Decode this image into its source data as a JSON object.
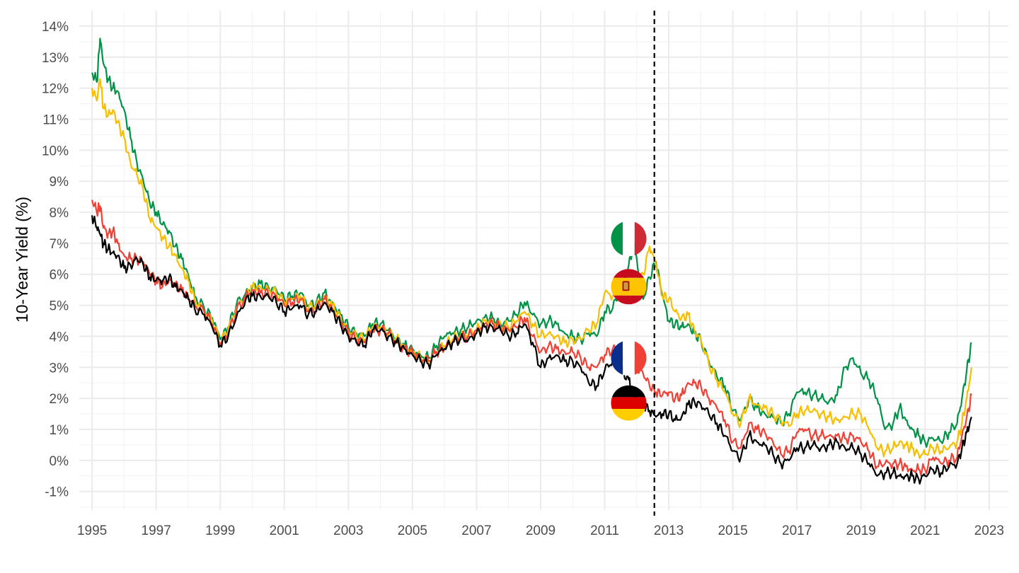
{
  "chart_data": {
    "type": "line",
    "title": "",
    "xlabel": "",
    "ylabel": "10-Year Yield (%)",
    "xlim": [
      1994.6,
      2023.6
    ],
    "ylim": [
      -1.6,
      14.5
    ],
    "x_ticks": [
      1995,
      1997,
      1999,
      2001,
      2003,
      2005,
      2007,
      2009,
      2011,
      2013,
      2015,
      2017,
      2019,
      2021,
      2023
    ],
    "x_tick_labels": [
      "1995",
      "1997",
      "1999",
      "2001",
      "2003",
      "2005",
      "2007",
      "2009",
      "2011",
      "2013",
      "2015",
      "2017",
      "2019",
      "2021",
      "2023"
    ],
    "y_ticks": [
      -1,
      0,
      1,
      2,
      3,
      4,
      5,
      6,
      7,
      8,
      9,
      10,
      11,
      12,
      13,
      14
    ],
    "y_tick_labels": [
      "-1%",
      "0%",
      "1%",
      "2%",
      "3%",
      "4%",
      "5%",
      "6%",
      "7%",
      "8%",
      "9%",
      "10%",
      "11%",
      "12%",
      "13%",
      "14%"
    ],
    "grid": true,
    "legend": "none",
    "vline": {
      "x": 2012.55,
      "style": "dashed",
      "color": "#000000"
    },
    "series": [
      {
        "color": "#009246",
        "flag": "italy-flag-icon",
        "flag_value": 7.15,
        "x": [
          1995.0,
          1995.15,
          1995.25,
          1995.35,
          1995.5,
          1995.65,
          1995.8,
          1996.0,
          1996.2,
          1996.4,
          1996.6,
          1996.8,
          1997.0,
          1997.2,
          1997.4,
          1997.6,
          1997.8,
          1998.0,
          1998.2,
          1998.5,
          1998.75,
          1999.0,
          1999.25,
          1999.5,
          1999.8,
          2000.0,
          2000.25,
          2000.5,
          2000.75,
          2001.0,
          2001.25,
          2001.5,
          2001.75,
          2002.0,
          2002.25,
          2002.5,
          2002.75,
          2003.0,
          2003.25,
          2003.5,
          2003.75,
          2004.0,
          2004.25,
          2004.5,
          2004.75,
          2005.0,
          2005.25,
          2005.5,
          2005.75,
          2006.0,
          2006.25,
          2006.5,
          2006.75,
          2007.0,
          2007.25,
          2007.5,
          2007.75,
          2008.0,
          2008.25,
          2008.5,
          2008.75,
          2009.0,
          2009.25,
          2009.5,
          2009.75,
          2010.0,
          2010.25,
          2010.5,
          2010.75,
          2011.0,
          2011.25,
          2011.5,
          2011.75,
          2011.9,
          2012.0,
          2012.2,
          2012.4,
          2012.6,
          2012.8,
          2013.0,
          2013.2,
          2013.4,
          2013.6,
          2013.8,
          2014.0,
          2014.25,
          2014.5,
          2014.75,
          2015.0,
          2015.25,
          2015.5,
          2015.75,
          2016.0,
          2016.25,
          2016.5,
          2016.75,
          2017.0,
          2017.25,
          2017.5,
          2017.75,
          2018.0,
          2018.25,
          2018.5,
          2018.75,
          2019.0,
          2019.25,
          2019.5,
          2019.75,
          2020.0,
          2020.2,
          2020.4,
          2020.6,
          2020.8,
          2021.0,
          2021.25,
          2021.5,
          2021.75,
          2022.0,
          2022.15,
          2022.3,
          2022.45
        ],
        "values": [
          12.5,
          12.2,
          13.6,
          12.8,
          12.3,
          12.0,
          11.9,
          11.3,
          10.4,
          9.6,
          9.0,
          8.3,
          8.0,
          7.6,
          7.4,
          6.9,
          6.5,
          6.0,
          5.3,
          4.9,
          4.6,
          3.9,
          4.3,
          5.0,
          5.4,
          5.6,
          5.7,
          5.6,
          5.5,
          5.2,
          5.3,
          5.4,
          5.0,
          5.1,
          5.4,
          5.1,
          4.7,
          4.3,
          4.1,
          4.0,
          4.4,
          4.4,
          4.2,
          3.9,
          3.7,
          3.6,
          3.4,
          3.3,
          3.7,
          4.0,
          4.1,
          4.2,
          4.3,
          4.5,
          4.6,
          4.6,
          4.4,
          4.5,
          4.7,
          5.1,
          4.7,
          4.4,
          4.5,
          4.4,
          4.1,
          4.0,
          3.9,
          4.1,
          4.0,
          4.8,
          4.9,
          5.5,
          6.3,
          7.0,
          6.5,
          5.2,
          5.9,
          6.4,
          5.3,
          4.5,
          4.4,
          4.3,
          4.4,
          4.1,
          3.9,
          3.2,
          2.7,
          2.4,
          1.6,
          1.3,
          2.0,
          1.7,
          1.5,
          1.4,
          1.2,
          1.5,
          2.2,
          2.2,
          2.1,
          2.0,
          1.9,
          2.1,
          3.0,
          3.3,
          2.8,
          2.6,
          2.0,
          1.0,
          1.2,
          1.7,
          1.3,
          1.0,
          0.8,
          0.6,
          0.7,
          0.6,
          0.9,
          1.2,
          2.0,
          2.9,
          3.8
        ]
      },
      {
        "color": "#f6bf00",
        "flag": "spain-flag-icon",
        "flag_value": 5.6,
        "x": [
          1995.0,
          1995.15,
          1995.25,
          1995.35,
          1995.5,
          1995.65,
          1995.8,
          1996.0,
          1996.2,
          1996.4,
          1996.6,
          1996.8,
          1997.0,
          1997.2,
          1997.4,
          1997.6,
          1997.8,
          1998.0,
          1998.2,
          1998.5,
          1998.75,
          1999.0,
          1999.25,
          1999.5,
          1999.8,
          2000.0,
          2000.25,
          2000.5,
          2000.75,
          2001.0,
          2001.25,
          2001.5,
          2001.75,
          2002.0,
          2002.25,
          2002.5,
          2002.75,
          2003.0,
          2003.25,
          2003.5,
          2003.75,
          2004.0,
          2004.25,
          2004.5,
          2004.75,
          2005.0,
          2005.25,
          2005.5,
          2005.75,
          2006.0,
          2006.25,
          2006.5,
          2006.75,
          2007.0,
          2007.25,
          2007.5,
          2007.75,
          2008.0,
          2008.25,
          2008.5,
          2008.75,
          2009.0,
          2009.25,
          2009.5,
          2009.75,
          2010.0,
          2010.25,
          2010.5,
          2010.75,
          2011.0,
          2011.25,
          2011.5,
          2011.75,
          2011.9,
          2012.0,
          2012.2,
          2012.4,
          2012.6,
          2012.8,
          2013.0,
          2013.2,
          2013.4,
          2013.6,
          2013.8,
          2014.0,
          2014.25,
          2014.5,
          2014.75,
          2015.0,
          2015.25,
          2015.5,
          2015.75,
          2016.0,
          2016.25,
          2016.5,
          2016.75,
          2017.0,
          2017.25,
          2017.5,
          2017.75,
          2018.0,
          2018.25,
          2018.5,
          2018.75,
          2019.0,
          2019.25,
          2019.5,
          2019.75,
          2020.0,
          2020.2,
          2020.4,
          2020.6,
          2020.8,
          2021.0,
          2021.25,
          2021.5,
          2021.75,
          2022.0,
          2022.15,
          2022.3,
          2022.45
        ],
        "values": [
          12.0,
          11.6,
          12.3,
          11.4,
          11.1,
          11.3,
          10.9,
          10.4,
          9.6,
          9.2,
          8.7,
          7.8,
          7.5,
          7.2,
          6.9,
          6.6,
          6.2,
          5.8,
          5.2,
          4.8,
          4.5,
          3.8,
          4.2,
          4.9,
          5.3,
          5.6,
          5.6,
          5.5,
          5.4,
          5.1,
          5.2,
          5.3,
          4.9,
          5.0,
          5.3,
          5.0,
          4.6,
          4.2,
          4.0,
          3.9,
          4.3,
          4.3,
          4.1,
          3.9,
          3.7,
          3.5,
          3.3,
          3.2,
          3.5,
          3.7,
          3.9,
          4.0,
          4.1,
          4.2,
          4.5,
          4.5,
          4.3,
          4.3,
          4.5,
          4.8,
          4.4,
          4.0,
          4.1,
          4.0,
          3.8,
          3.9,
          3.9,
          4.2,
          4.4,
          5.4,
          5.3,
          5.5,
          5.6,
          5.3,
          5.6,
          6.0,
          6.9,
          6.3,
          5.3,
          5.2,
          4.8,
          4.6,
          4.7,
          4.2,
          3.9,
          3.1,
          2.6,
          2.2,
          1.5,
          1.2,
          2.0,
          1.8,
          1.7,
          1.5,
          1.3,
          1.1,
          1.5,
          1.6,
          1.6,
          1.5,
          1.4,
          1.3,
          1.4,
          1.5,
          1.5,
          1.0,
          0.4,
          0.3,
          0.4,
          0.6,
          0.5,
          0.4,
          0.2,
          0.2,
          0.4,
          0.3,
          0.4,
          0.6,
          1.2,
          2.0,
          3.0
        ]
      },
      {
        "color": "#ef4135",
        "flag": "france-flag-icon",
        "flag_value": 3.3,
        "x": [
          1995.0,
          1995.15,
          1995.25,
          1995.35,
          1995.5,
          1995.65,
          1995.8,
          1996.0,
          1996.2,
          1996.4,
          1996.6,
          1996.8,
          1997.0,
          1997.2,
          1997.4,
          1997.6,
          1997.8,
          1998.0,
          1998.2,
          1998.5,
          1998.75,
          1999.0,
          1999.25,
          1999.5,
          1999.8,
          2000.0,
          2000.25,
          2000.5,
          2000.75,
          2001.0,
          2001.25,
          2001.5,
          2001.75,
          2002.0,
          2002.25,
          2002.5,
          2002.75,
          2003.0,
          2003.25,
          2003.5,
          2003.75,
          2004.0,
          2004.25,
          2004.5,
          2004.75,
          2005.0,
          2005.25,
          2005.5,
          2005.75,
          2006.0,
          2006.25,
          2006.5,
          2006.75,
          2007.0,
          2007.25,
          2007.5,
          2007.75,
          2008.0,
          2008.25,
          2008.5,
          2008.75,
          2009.0,
          2009.25,
          2009.5,
          2009.75,
          2010.0,
          2010.25,
          2010.5,
          2010.75,
          2011.0,
          2011.25,
          2011.5,
          2011.75,
          2011.9,
          2012.0,
          2012.2,
          2012.4,
          2012.6,
          2012.8,
          2013.0,
          2013.2,
          2013.4,
          2013.6,
          2013.8,
          2014.0,
          2014.25,
          2014.5,
          2014.75,
          2015.0,
          2015.25,
          2015.5,
          2015.75,
          2016.0,
          2016.25,
          2016.5,
          2016.75,
          2017.0,
          2017.25,
          2017.5,
          2017.75,
          2018.0,
          2018.25,
          2018.5,
          2018.75,
          2019.0,
          2019.25,
          2019.5,
          2019.75,
          2020.0,
          2020.2,
          2020.4,
          2020.6,
          2020.8,
          2021.0,
          2021.25,
          2021.5,
          2021.75,
          2022.0,
          2022.15,
          2022.3,
          2022.45
        ],
        "values": [
          8.4,
          8.0,
          8.2,
          7.5,
          7.3,
          7.4,
          7.0,
          6.6,
          6.5,
          6.5,
          6.4,
          6.0,
          5.8,
          5.6,
          5.8,
          5.7,
          5.5,
          5.3,
          5.0,
          4.8,
          4.4,
          3.7,
          4.1,
          4.8,
          5.3,
          5.5,
          5.4,
          5.4,
          5.3,
          5.0,
          5.1,
          5.2,
          4.8,
          4.9,
          5.2,
          4.9,
          4.5,
          4.1,
          3.9,
          3.8,
          4.2,
          4.2,
          4.1,
          3.8,
          3.6,
          3.5,
          3.3,
          3.2,
          3.5,
          3.6,
          3.8,
          4.0,
          4.0,
          4.2,
          4.4,
          4.4,
          4.3,
          4.2,
          4.3,
          4.6,
          4.0,
          3.5,
          3.7,
          3.6,
          3.5,
          3.5,
          3.3,
          3.0,
          3.0,
          3.4,
          3.6,
          3.3,
          3.2,
          3.1,
          3.0,
          2.8,
          2.4,
          2.2,
          2.1,
          2.2,
          2.0,
          2.1,
          2.5,
          2.5,
          2.4,
          2.0,
          1.7,
          1.3,
          0.6,
          0.4,
          1.2,
          1.0,
          0.9,
          0.6,
          0.2,
          0.3,
          0.9,
          1.0,
          0.8,
          0.8,
          0.8,
          0.8,
          0.7,
          0.8,
          0.6,
          0.3,
          -0.2,
          -0.1,
          -0.1,
          -0.1,
          -0.2,
          -0.3,
          -0.3,
          -0.3,
          0.1,
          -0.1,
          0.0,
          0.1,
          0.8,
          1.4,
          2.1
        ]
      },
      {
        "color": "#000000",
        "flag": "germany-flag-icon",
        "flag_value": 1.85,
        "x": [
          1995.0,
          1995.15,
          1995.25,
          1995.35,
          1995.5,
          1995.65,
          1995.8,
          1996.0,
          1996.2,
          1996.4,
          1996.6,
          1996.8,
          1997.0,
          1997.2,
          1997.4,
          1997.6,
          1997.8,
          1998.0,
          1998.2,
          1998.5,
          1998.75,
          1999.0,
          1999.25,
          1999.5,
          1999.8,
          2000.0,
          2000.25,
          2000.5,
          2000.75,
          2001.0,
          2001.25,
          2001.5,
          2001.75,
          2002.0,
          2002.25,
          2002.5,
          2002.75,
          2003.0,
          2003.25,
          2003.5,
          2003.75,
          2004.0,
          2004.25,
          2004.5,
          2004.75,
          2005.0,
          2005.25,
          2005.5,
          2005.75,
          2006.0,
          2006.25,
          2006.5,
          2006.75,
          2007.0,
          2007.25,
          2007.5,
          2007.75,
          2008.0,
          2008.25,
          2008.5,
          2008.75,
          2009.0,
          2009.25,
          2009.5,
          2009.75,
          2010.0,
          2010.25,
          2010.5,
          2010.75,
          2011.0,
          2011.25,
          2011.5,
          2011.75,
          2011.9,
          2012.0,
          2012.2,
          2012.4,
          2012.6,
          2012.8,
          2013.0,
          2013.2,
          2013.4,
          2013.6,
          2013.8,
          2014.0,
          2014.25,
          2014.5,
          2014.75,
          2015.0,
          2015.25,
          2015.5,
          2015.75,
          2016.0,
          2016.25,
          2016.5,
          2016.75,
          2017.0,
          2017.25,
          2017.5,
          2017.75,
          2018.0,
          2018.25,
          2018.5,
          2018.75,
          2019.0,
          2019.25,
          2019.5,
          2019.75,
          2020.0,
          2020.2,
          2020.4,
          2020.6,
          2020.8,
          2021.0,
          2021.25,
          2021.5,
          2021.75,
          2022.0,
          2022.15,
          2022.3,
          2022.45
        ],
        "values": [
          7.9,
          7.5,
          7.3,
          7.0,
          6.8,
          6.7,
          6.6,
          6.2,
          6.3,
          6.5,
          6.3,
          5.9,
          5.8,
          5.8,
          5.9,
          5.6,
          5.5,
          5.2,
          4.9,
          4.7,
          4.3,
          3.7,
          4.0,
          4.6,
          5.2,
          5.3,
          5.3,
          5.3,
          5.1,
          4.8,
          4.9,
          5.0,
          4.7,
          4.8,
          5.1,
          4.8,
          4.4,
          4.0,
          3.8,
          3.7,
          4.2,
          4.2,
          4.0,
          3.8,
          3.6,
          3.4,
          3.2,
          3.1,
          3.4,
          3.6,
          3.8,
          3.9,
          3.9,
          4.1,
          4.3,
          4.3,
          4.2,
          4.0,
          4.1,
          4.4,
          3.8,
          3.0,
          3.3,
          3.4,
          3.2,
          3.2,
          3.0,
          2.5,
          2.4,
          2.9,
          3.2,
          3.0,
          2.6,
          2.2,
          1.9,
          1.8,
          1.6,
          1.4,
          1.5,
          1.5,
          1.3,
          1.4,
          1.8,
          1.9,
          1.8,
          1.5,
          1.2,
          0.8,
          0.3,
          0.1,
          0.8,
          0.6,
          0.5,
          0.2,
          -0.1,
          0.0,
          0.4,
          0.4,
          0.5,
          0.4,
          0.5,
          0.6,
          0.4,
          0.4,
          0.2,
          -0.1,
          -0.5,
          -0.4,
          -0.4,
          -0.5,
          -0.5,
          -0.5,
          -0.6,
          -0.5,
          -0.3,
          -0.4,
          -0.2,
          -0.1,
          0.4,
          0.9,
          1.4
        ]
      }
    ]
  }
}
